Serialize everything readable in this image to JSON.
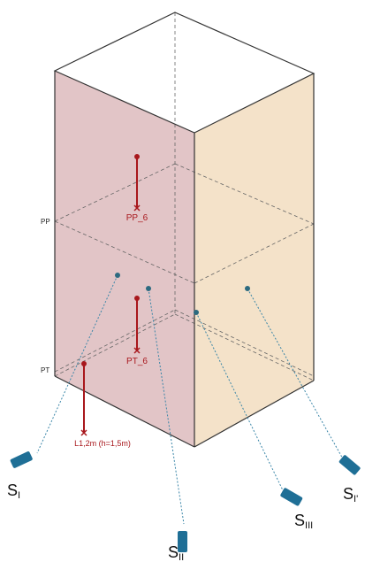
{
  "plane_labels": [
    "PP",
    "PT"
  ],
  "markers": [
    {
      "label": "PP_6"
    },
    {
      "label": "PT_6"
    },
    {
      "label": "L1,2m (h=1,5m)"
    }
  ],
  "sensors": [
    {
      "label": "S",
      "sub": "I"
    },
    {
      "label": "S",
      "sub": "II"
    },
    {
      "label": "S",
      "sub": "III"
    },
    {
      "label": "S",
      "sub": "I'"
    }
  ]
}
